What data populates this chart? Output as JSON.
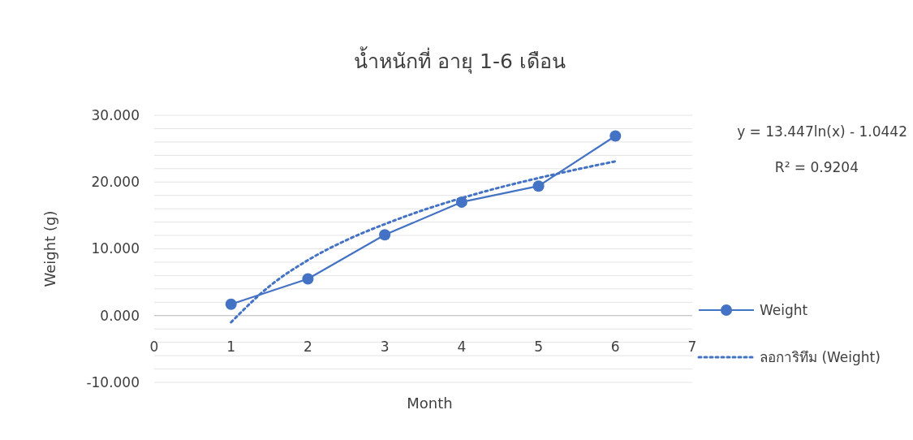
{
  "chart_data": {
    "type": "line",
    "title": "น้ำหนักที่ อายุ 1-6 เดือน",
    "xlabel": "Month",
    "ylabel": "Weight (g)",
    "annotations": [
      "y = 13.447ln(x) - 1.0442",
      "R² = 0.9204"
    ],
    "xlim": [
      0,
      7
    ],
    "xticks": [
      0,
      1,
      2,
      3,
      4,
      5,
      6,
      7
    ],
    "ylim": [
      -10,
      30
    ],
    "yticks": [
      {
        "value": -10,
        "label": "-10.000"
      },
      {
        "value": -8,
        "label": null
      },
      {
        "value": -6,
        "label": null
      },
      {
        "value": -4,
        "label": null
      },
      {
        "value": -2,
        "label": null
      },
      {
        "value": 0,
        "label": "0.000"
      },
      {
        "value": 2,
        "label": null
      },
      {
        "value": 4,
        "label": null
      },
      {
        "value": 6,
        "label": null
      },
      {
        "value": 8,
        "label": null
      },
      {
        "value": 10,
        "label": "10.000"
      },
      {
        "value": 12,
        "label": null
      },
      {
        "value": 14,
        "label": null
      },
      {
        "value": 16,
        "label": null
      },
      {
        "value": 18,
        "label": null
      },
      {
        "value": 20,
        "label": "20.000"
      },
      {
        "value": 22,
        "label": null
      },
      {
        "value": 24,
        "label": null
      },
      {
        "value": 26,
        "label": null
      },
      {
        "value": 28,
        "label": null
      },
      {
        "value": 30,
        "label": "30.000"
      }
    ],
    "grid": "y",
    "legend": "right",
    "series": [
      {
        "name": "Weight",
        "color": "#4472c4",
        "x": [
          1,
          2,
          3,
          4,
          5,
          6
        ],
        "values": [
          1.7,
          5.5,
          12.1,
          17.0,
          19.4,
          26.9
        ],
        "marker": "circle",
        "line_style": "solid"
      },
      {
        "name": "ลอการิทึม (Weight)",
        "color": "#4472c4",
        "x": [
          1,
          1.5,
          2,
          2.5,
          3,
          3.5,
          4,
          4.5,
          5,
          5.5,
          6
        ],
        "values": [
          -1.0,
          4.4,
          8.3,
          11.3,
          13.7,
          15.8,
          17.6,
          19.2,
          20.6,
          21.9,
          23.1
        ],
        "marker": "none",
        "line_style": "dotted"
      }
    ]
  }
}
